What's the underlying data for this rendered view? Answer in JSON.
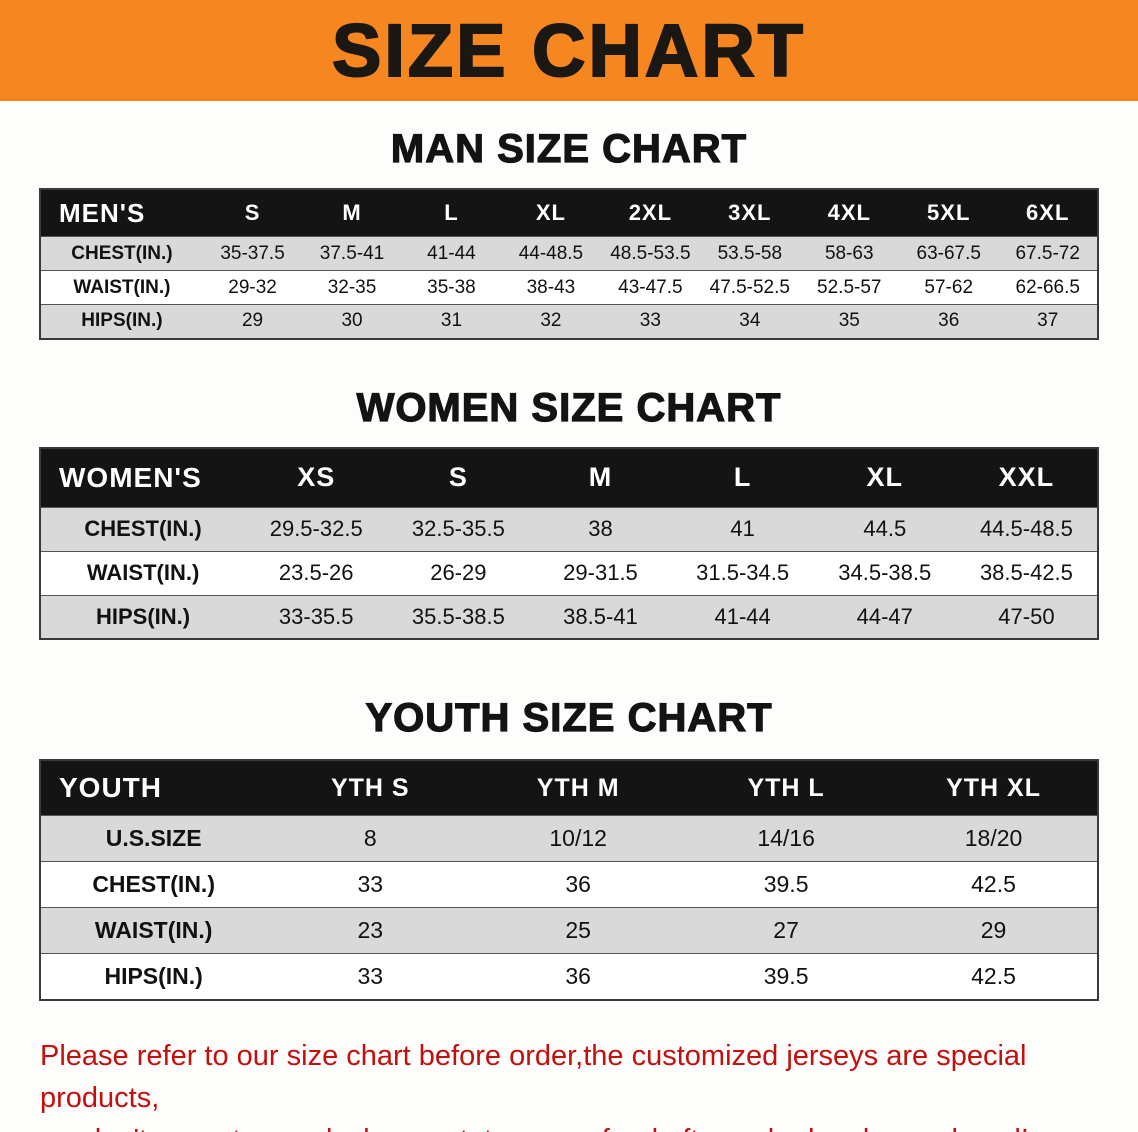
{
  "banner": {
    "title": "SIZE CHART",
    "bg_color": "#f6861f",
    "text_color": "#1b1712"
  },
  "chart_data": [
    {
      "type": "table",
      "title": "MAN SIZE CHART",
      "header_label": "MEN'S",
      "columns": [
        "S",
        "M",
        "L",
        "XL",
        "2XL",
        "3XL",
        "4XL",
        "5XL",
        "6XL"
      ],
      "rows": [
        {
          "label": "CHEST(IN.)",
          "values": [
            "35-37.5",
            "37.5-41",
            "41-44",
            "44-48.5",
            "48.5-53.5",
            "53.5-58",
            "58-63",
            "63-67.5",
            "67.5-72"
          ]
        },
        {
          "label": "WAIST(IN.)",
          "values": [
            "29-32",
            "32-35",
            "35-38",
            "38-43",
            "43-47.5",
            "47.5-52.5",
            "52.5-57",
            "57-62",
            "62-66.5"
          ]
        },
        {
          "label": "HIPS(IN.)",
          "values": [
            "29",
            "30",
            "31",
            "32",
            "33",
            "34",
            "35",
            "36",
            "37"
          ]
        }
      ]
    },
    {
      "type": "table",
      "title": "WOMEN SIZE CHART",
      "header_label": "WOMEN'S",
      "columns": [
        "XS",
        "S",
        "M",
        "L",
        "XL",
        "XXL"
      ],
      "rows": [
        {
          "label": "CHEST(IN.)",
          "values": [
            "29.5-32.5",
            "32.5-35.5",
            "38",
            "41",
            "44.5",
            "44.5-48.5"
          ]
        },
        {
          "label": "WAIST(IN.)",
          "values": [
            "23.5-26",
            "26-29",
            "29-31.5",
            "31.5-34.5",
            "34.5-38.5",
            "38.5-42.5"
          ]
        },
        {
          "label": "HIPS(IN.)",
          "values": [
            "33-35.5",
            "35.5-38.5",
            "38.5-41",
            "41-44",
            "44-47",
            "47-50"
          ]
        }
      ]
    },
    {
      "type": "table",
      "title": "YOUTH SIZE CHART",
      "header_label": "YOUTH",
      "columns": [
        "YTH S",
        "YTH M",
        "YTH L",
        "YTH XL"
      ],
      "rows": [
        {
          "label": "U.S.SIZE",
          "values": [
            "8",
            "10/12",
            "14/16",
            "18/20"
          ]
        },
        {
          "label": "CHEST(IN.)",
          "values": [
            "33",
            "36",
            "39.5",
            "42.5"
          ]
        },
        {
          "label": "WAIST(IN.)",
          "values": [
            "23",
            "25",
            "27",
            "29"
          ]
        },
        {
          "label": "HIPS(IN.)",
          "values": [
            "33",
            "36",
            "39.5",
            "42.5"
          ]
        }
      ]
    }
  ],
  "footer_note": {
    "line1": "Please refer to our size chart before order,the customized jerseys are special products,",
    "line2": "we don't accept cancel, change, teturn or refund after order has been placed!",
    "color": "#c3100f"
  },
  "colors": {
    "table_header_bg": "#141414",
    "row_stripe": "#d9d9d9",
    "table_border": "#3a3a3a"
  }
}
